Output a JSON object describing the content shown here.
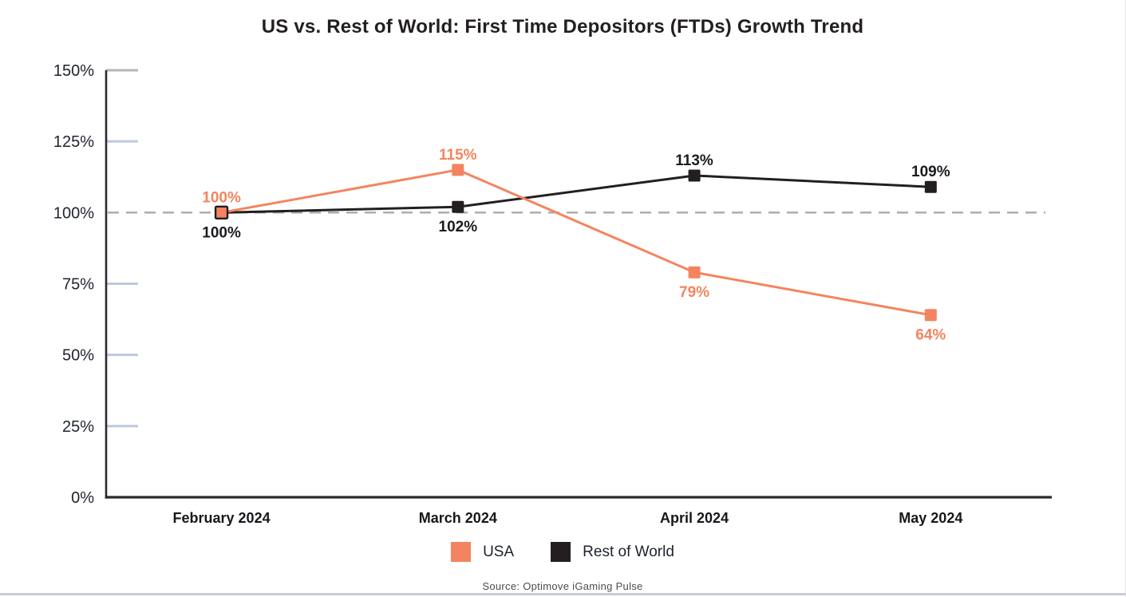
{
  "title": "US vs. Rest of World: First Time Depositors (FTDs) Growth Trend",
  "source": "Source: Optimove iGaming Pulse",
  "colors": {
    "usa": "#F4845F",
    "rest_of_world": "#231F20",
    "reference_line": "#a9a9a9",
    "tick": "#bdc9db",
    "tick_top": "#b5b5b5",
    "axis": "#2b2b2f"
  },
  "chart_data": {
    "type": "line",
    "title": "US vs. Rest of World: First Time Depositors (FTDs) Growth Trend",
    "categories": [
      "February 2024",
      "March 2024",
      "April 2024",
      "May 2024"
    ],
    "series": [
      {
        "name": "USA",
        "color": "#F4845F",
        "label_color": "#F4845F",
        "values": [
          100,
          115,
          79,
          64
        ],
        "label_positions": [
          "above",
          "above",
          "below",
          "below"
        ]
      },
      {
        "name": "Rest of World",
        "color": "#231F20",
        "label_color": "#1b1b20",
        "values": [
          100,
          102,
          113,
          109
        ],
        "label_positions": [
          "below",
          "below",
          "above",
          "above"
        ]
      }
    ],
    "xlabel": "",
    "ylabel": "",
    "unit": "%",
    "ylim": [
      0,
      150
    ],
    "yticks": [
      0,
      25,
      50,
      75,
      100,
      125,
      150
    ],
    "reference_line": {
      "y": 100,
      "style": "dashed"
    },
    "grid": false,
    "legend_position": "bottom"
  }
}
